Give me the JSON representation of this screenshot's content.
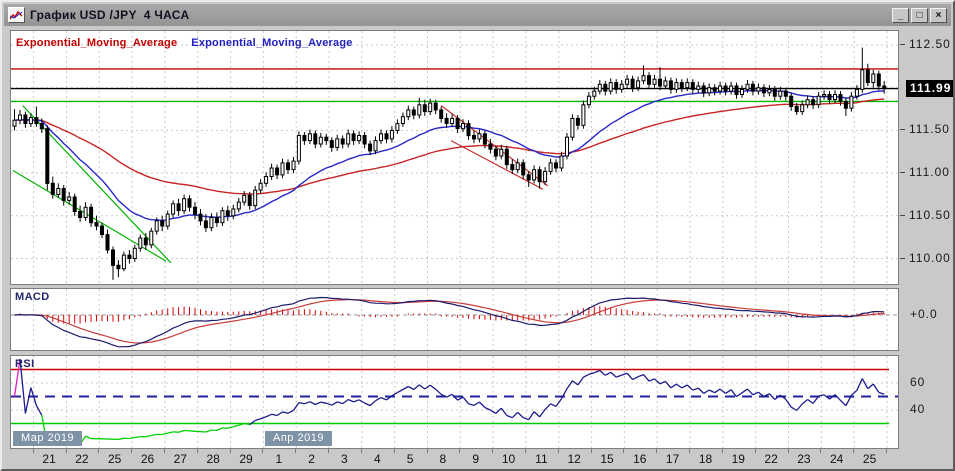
{
  "window": {
    "title": "График USD /JPY  4 ЧАСА",
    "buttons": {
      "minimize": "_",
      "maximize": "□",
      "close": "×"
    }
  },
  "legend": [
    {
      "label": "Exponential_Moving_Average",
      "color": "#c00000"
    },
    {
      "label": "Exponential_Moving_Average",
      "color": "#2020c0"
    }
  ],
  "panels": {
    "macd_label": "MACD",
    "rsi_label": "RSI"
  },
  "price_axis": {
    "labels": [
      "112.50",
      "111.50",
      "111.00",
      "110.50",
      "110.00"
    ],
    "label_prices": [
      112.5,
      111.5,
      111.0,
      110.5,
      110.0
    ],
    "current": {
      "text": "111.99",
      "price": 111.99
    }
  },
  "macd_axis": {
    "zero_label": "+0.0",
    "zero_value": 0.0
  },
  "rsi_axis": {
    "labels": [
      "60",
      "40"
    ],
    "values": [
      60,
      40
    ]
  },
  "date_axis": {
    "days": [
      "21",
      "22",
      "25",
      "26",
      "27",
      "28",
      "29",
      "1",
      "2",
      "3",
      "4",
      "5",
      "8",
      "9",
      "10",
      "11",
      "12",
      "15",
      "16",
      "17",
      "18",
      "19",
      "22",
      "23",
      "24",
      "25"
    ],
    "months": [
      {
        "label": "Мар 2019",
        "day_index": 0
      },
      {
        "label": "Апр 2019",
        "day_index": 7
      }
    ]
  },
  "chart_data": {
    "type": "candlestick+indicators",
    "symbol": "USD/JPY",
    "timeframe": "4H",
    "ylim": [
      109.69,
      112.64
    ],
    "price_gridlines": [
      112.5,
      112.0,
      111.5,
      111.0,
      110.5,
      110.0
    ],
    "levels": [
      {
        "price": 112.22,
        "color": "#c80000"
      },
      {
        "price": 111.99,
        "color": "#000000"
      },
      {
        "price": 111.84,
        "color": "#00b400"
      }
    ],
    "trendlines": [
      {
        "color": "#00b400",
        "i1": 1.5,
        "p1": 111.79,
        "i2": 28.6,
        "p2": 109.95
      },
      {
        "color": "#00b400",
        "i1": -0.3,
        "p1": 111.03,
        "i2": 27.7,
        "p2": 109.97
      },
      {
        "color": "#c83232",
        "i1": 78.0,
        "p1": 111.79,
        "i2": 97.5,
        "p2": 110.85
      },
      {
        "color": "#c83232",
        "i1": 79.8,
        "p1": 111.38,
        "i2": 96.6,
        "p2": 110.81
      }
    ],
    "indicators": {
      "ema_fast_period": 21,
      "ema_slow_period": 55,
      "macd_params": [
        12,
        26,
        9
      ],
      "rsi_period": 14,
      "rsi_levels": {
        "overbought": 70,
        "mid": 50,
        "oversold": 30
      }
    },
    "colors": {
      "ema_fast": "#2828c8",
      "ema_slow": "#c82424",
      "macd_line": "#1a1a6e",
      "macd_signal": "#c83c3c",
      "macd_hist": "#dd0000",
      "rsi_line": "#1a1a8c",
      "rsi_overbought_seg": "#e020c0",
      "rsi_oversold_seg": "#00d000",
      "rsi_ob_line": "#cc0000",
      "rsi_os_line": "#00cc00",
      "rsi_mid_line": "#2020a0",
      "grid": "#c9c9c9",
      "candle_up_fill": "#ffffff",
      "candle_down_fill": "#000000",
      "candle_stroke": "#000000"
    },
    "candles": [
      [
        111.55,
        111.75,
        111.5,
        111.62
      ],
      [
        111.62,
        111.74,
        111.57,
        111.68
      ],
      [
        111.68,
        111.72,
        111.53,
        111.58
      ],
      [
        111.58,
        111.7,
        111.54,
        111.65
      ],
      [
        111.65,
        111.78,
        111.54,
        111.58
      ],
      [
        111.58,
        111.64,
        111.47,
        111.52
      ],
      [
        111.52,
        111.56,
        110.8,
        110.88
      ],
      [
        110.88,
        110.96,
        110.7,
        110.75
      ],
      [
        110.75,
        110.88,
        110.71,
        110.82
      ],
      [
        110.82,
        110.86,
        110.62,
        110.68
      ],
      [
        110.68,
        110.78,
        110.63,
        110.72
      ],
      [
        110.72,
        110.76,
        110.5,
        110.55
      ],
      [
        110.55,
        110.62,
        110.43,
        110.48
      ],
      [
        110.48,
        110.66,
        110.44,
        110.6
      ],
      [
        110.6,
        110.64,
        110.37,
        110.42
      ],
      [
        110.42,
        110.5,
        110.33,
        110.38
      ],
      [
        110.38,
        110.42,
        110.24,
        110.28
      ],
      [
        110.28,
        110.34,
        110.06,
        110.1
      ],
      [
        110.1,
        110.14,
        109.75,
        109.92
      ],
      [
        109.92,
        109.98,
        109.78,
        109.88
      ],
      [
        109.88,
        110.08,
        109.85,
        110.04
      ],
      [
        110.04,
        110.1,
        109.94,
        110.0
      ],
      [
        110.0,
        110.16,
        109.96,
        110.12
      ],
      [
        110.12,
        110.28,
        110.08,
        110.24
      ],
      [
        110.24,
        110.3,
        110.1,
        110.16
      ],
      [
        110.16,
        110.36,
        110.12,
        110.32
      ],
      [
        110.32,
        110.48,
        110.28,
        110.44
      ],
      [
        110.44,
        110.5,
        110.32,
        110.38
      ],
      [
        110.38,
        110.56,
        110.34,
        110.52
      ],
      [
        110.52,
        110.68,
        110.48,
        110.64
      ],
      [
        110.64,
        110.7,
        110.5,
        110.56
      ],
      [
        110.56,
        110.75,
        110.52,
        110.7
      ],
      [
        110.7,
        110.74,
        110.55,
        110.6
      ],
      [
        110.6,
        110.66,
        110.46,
        110.52
      ],
      [
        110.52,
        110.58,
        110.39,
        110.44
      ],
      [
        110.44,
        110.52,
        110.31,
        110.36
      ],
      [
        110.36,
        110.53,
        110.32,
        110.48
      ],
      [
        110.48,
        110.54,
        110.37,
        110.42
      ],
      [
        110.42,
        110.6,
        110.38,
        110.56
      ],
      [
        110.56,
        110.62,
        110.44,
        110.5
      ],
      [
        110.5,
        110.63,
        110.46,
        110.58
      ],
      [
        110.58,
        110.71,
        110.54,
        110.66
      ],
      [
        110.66,
        110.79,
        110.62,
        110.74
      ],
      [
        110.74,
        110.78,
        110.57,
        110.62
      ],
      [
        110.62,
        110.85,
        110.58,
        110.8
      ],
      [
        110.8,
        110.93,
        110.76,
        110.88
      ],
      [
        110.88,
        111.01,
        110.84,
        110.96
      ],
      [
        110.96,
        111.11,
        110.92,
        111.06
      ],
      [
        111.06,
        111.1,
        110.93,
        110.98
      ],
      [
        110.98,
        111.17,
        110.94,
        111.12
      ],
      [
        111.12,
        111.16,
        110.99,
        111.04
      ],
      [
        111.04,
        111.19,
        111.0,
        111.14
      ],
      [
        111.14,
        111.49,
        111.1,
        111.44
      ],
      [
        111.44,
        111.48,
        111.33,
        111.38
      ],
      [
        111.38,
        111.51,
        111.34,
        111.46
      ],
      [
        111.46,
        111.5,
        111.29,
        111.34
      ],
      [
        111.34,
        111.47,
        111.3,
        111.42
      ],
      [
        111.42,
        111.46,
        111.33,
        111.38
      ],
      [
        111.38,
        111.42,
        111.25,
        111.3
      ],
      [
        111.3,
        111.45,
        111.26,
        111.4
      ],
      [
        111.4,
        111.44,
        111.29,
        111.34
      ],
      [
        111.34,
        111.51,
        111.3,
        111.46
      ],
      [
        111.46,
        111.5,
        111.33,
        111.38
      ],
      [
        111.38,
        111.49,
        111.34,
        111.44
      ],
      [
        111.44,
        111.48,
        111.29,
        111.34
      ],
      [
        111.34,
        111.38,
        111.21,
        111.26
      ],
      [
        111.26,
        111.43,
        111.22,
        111.38
      ],
      [
        111.38,
        111.51,
        111.34,
        111.46
      ],
      [
        111.46,
        111.5,
        111.35,
        111.4
      ],
      [
        111.4,
        111.55,
        111.36,
        111.5
      ],
      [
        111.5,
        111.63,
        111.46,
        111.58
      ],
      [
        111.58,
        111.71,
        111.54,
        111.66
      ],
      [
        111.66,
        111.79,
        111.62,
        111.74
      ],
      [
        111.74,
        111.78,
        111.63,
        111.68
      ],
      [
        111.68,
        111.88,
        111.64,
        111.8
      ],
      [
        111.8,
        111.86,
        111.67,
        111.72
      ],
      [
        111.72,
        111.87,
        111.68,
        111.82
      ],
      [
        111.82,
        111.86,
        111.69,
        111.74
      ],
      [
        111.74,
        111.78,
        111.59,
        111.64
      ],
      [
        111.64,
        111.7,
        111.53,
        111.58
      ],
      [
        111.58,
        111.69,
        111.54,
        111.64
      ],
      [
        111.64,
        111.68,
        111.47,
        111.52
      ],
      [
        111.52,
        111.63,
        111.48,
        111.58
      ],
      [
        111.58,
        111.62,
        111.39,
        111.44
      ],
      [
        111.44,
        111.5,
        111.35,
        111.4
      ],
      [
        111.4,
        111.51,
        111.36,
        111.46
      ],
      [
        111.46,
        111.5,
        111.29,
        111.34
      ],
      [
        111.34,
        111.4,
        111.23,
        111.28
      ],
      [
        111.28,
        111.32,
        111.15,
        111.2
      ],
      [
        111.2,
        111.33,
        111.16,
        111.28
      ],
      [
        111.28,
        111.32,
        111.05,
        111.1
      ],
      [
        111.1,
        111.16,
        110.99,
        111.04
      ],
      [
        111.04,
        111.17,
        111.0,
        111.12
      ],
      [
        111.12,
        111.16,
        110.93,
        110.98
      ],
      [
        110.98,
        111.02,
        110.84,
        110.92
      ],
      [
        110.92,
        111.09,
        110.88,
        111.04
      ],
      [
        111.04,
        111.08,
        110.82,
        110.9
      ],
      [
        110.9,
        111.07,
        110.86,
        111.02
      ],
      [
        111.02,
        111.17,
        110.98,
        111.12
      ],
      [
        111.12,
        111.16,
        111.01,
        111.06
      ],
      [
        111.06,
        111.25,
        111.02,
        111.2
      ],
      [
        111.2,
        111.47,
        111.16,
        111.42
      ],
      [
        111.42,
        111.69,
        111.38,
        111.64
      ],
      [
        111.64,
        111.68,
        111.51,
        111.56
      ],
      [
        111.56,
        111.85,
        111.52,
        111.8
      ],
      [
        111.8,
        111.95,
        111.76,
        111.9
      ],
      [
        111.9,
        112.01,
        111.86,
        111.96
      ],
      [
        111.96,
        112.09,
        111.92,
        112.04
      ],
      [
        112.04,
        112.08,
        111.91,
        111.96
      ],
      [
        111.96,
        112.11,
        111.92,
        112.06
      ],
      [
        112.06,
        112.1,
        111.93,
        111.98
      ],
      [
        111.98,
        112.09,
        111.94,
        112.04
      ],
      [
        112.04,
        112.15,
        112.0,
        112.1
      ],
      [
        112.1,
        112.14,
        111.95,
        112.0
      ],
      [
        112.0,
        112.13,
        111.96,
        112.08
      ],
      [
        112.08,
        112.26,
        112.04,
        112.14
      ],
      [
        112.14,
        112.18,
        111.99,
        112.04
      ],
      [
        112.04,
        112.15,
        112.0,
        112.1
      ],
      [
        112.1,
        112.24,
        111.97,
        112.02
      ],
      [
        112.02,
        112.13,
        111.98,
        112.08
      ],
      [
        112.08,
        112.12,
        111.93,
        111.98
      ],
      [
        111.98,
        112.11,
        111.94,
        112.06
      ],
      [
        112.06,
        112.1,
        111.95,
        112.0
      ],
      [
        112.0,
        112.11,
        111.96,
        112.06
      ],
      [
        112.06,
        112.1,
        111.93,
        111.98
      ],
      [
        111.98,
        112.07,
        111.94,
        112.02
      ],
      [
        112.02,
        112.06,
        111.89,
        111.94
      ],
      [
        111.94,
        112.05,
        111.9,
        112.0
      ],
      [
        112.0,
        112.04,
        111.91,
        111.96
      ],
      [
        111.96,
        112.07,
        111.92,
        112.02
      ],
      [
        112.02,
        112.06,
        111.91,
        111.96
      ],
      [
        111.96,
        112.07,
        111.92,
        112.02
      ],
      [
        112.02,
        112.06,
        111.87,
        111.92
      ],
      [
        111.92,
        112.03,
        111.88,
        111.98
      ],
      [
        111.98,
        112.09,
        111.94,
        112.04
      ],
      [
        112.04,
        112.08,
        111.91,
        111.96
      ],
      [
        111.96,
        112.05,
        111.92,
        112.0
      ],
      [
        112.0,
        112.04,
        111.89,
        111.94
      ],
      [
        111.94,
        112.03,
        111.9,
        111.98
      ],
      [
        111.98,
        112.02,
        111.85,
        111.9
      ],
      [
        111.9,
        112.01,
        111.86,
        111.96
      ],
      [
        111.96,
        112.0,
        111.85,
        111.9
      ],
      [
        111.9,
        111.94,
        111.73,
        111.78
      ],
      [
        111.78,
        111.82,
        111.68,
        111.72
      ],
      [
        111.72,
        111.85,
        111.68,
        111.8
      ],
      [
        111.8,
        111.91,
        111.76,
        111.86
      ],
      [
        111.86,
        111.9,
        111.75,
        111.8
      ],
      [
        111.8,
        111.95,
        111.76,
        111.9
      ],
      [
        111.9,
        111.97,
        111.86,
        111.92
      ],
      [
        111.92,
        111.96,
        111.81,
        111.86
      ],
      [
        111.86,
        111.97,
        111.82,
        111.92
      ],
      [
        111.92,
        111.96,
        111.79,
        111.84
      ],
      [
        111.84,
        111.88,
        111.67,
        111.76
      ],
      [
        111.76,
        111.95,
        111.72,
        111.9
      ],
      [
        111.9,
        112.03,
        111.86,
        111.98
      ],
      [
        111.98,
        112.47,
        111.94,
        112.21
      ],
      [
        112.21,
        112.28,
        112.02,
        112.06
      ],
      [
        112.06,
        112.21,
        112.0,
        112.16
      ],
      [
        112.16,
        112.2,
        111.97,
        112.02
      ],
      [
        112.02,
        112.08,
        111.93,
        111.99
      ]
    ]
  }
}
